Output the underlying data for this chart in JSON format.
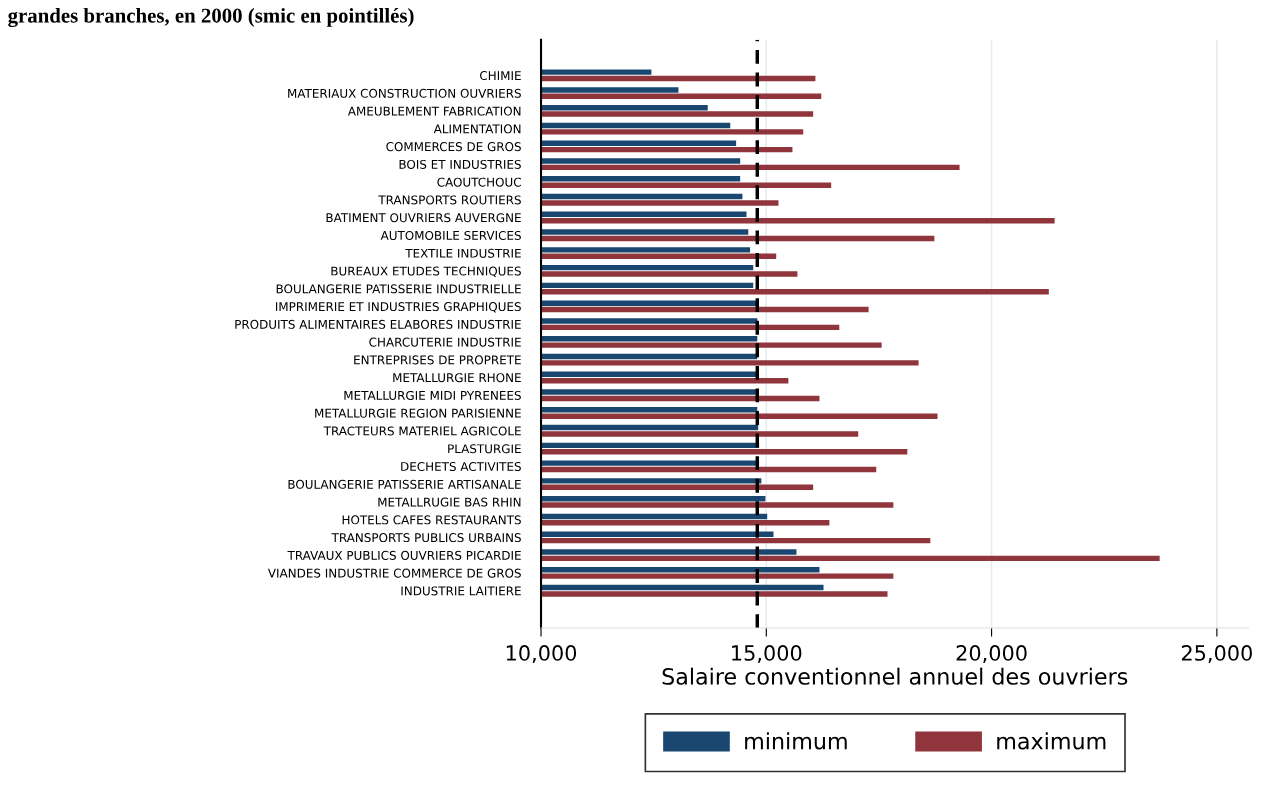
{
  "chart_data": {
    "type": "bar",
    "orientation": "horizontal",
    "title": "grandes branches, en 2000 (smic en pointillés)",
    "xlabel": "Salaire conventionnel annuel des ouvriers",
    "categories": [
      "CHIMIE",
      "MATERIAUX CONSTRUCTION OUVRIERS",
      "AMEUBLEMENT FABRICATION",
      "ALIMENTATION",
      "COMMERCES DE GROS",
      "BOIS ET INDUSTRIES",
      "CAOUTCHOUC",
      "TRANSPORTS ROUTIERS",
      "BATIMENT OUVRIERS AUVERGNE",
      "AUTOMOBILE SERVICES",
      "TEXTILE INDUSTRIE",
      "BUREAUX ETUDES TECHNIQUES",
      "BOULANGERIE PATISSERIE INDUSTRIELLE",
      "IMPRIMERIE ET INDUSTRIES GRAPHIQUES",
      "PRODUITS ALIMENTAIRES ELABORES INDUSTRIE",
      "CHARCUTERIE INDUSTRIE",
      "ENTREPRISES DE PROPRETE",
      "METALLURGIE RHONE",
      "METALLURGIE MIDI PYRENEES",
      "METALLURGIE REGION PARISIENNE",
      "TRACTEURS MATERIEL AGRICOLE",
      "PLASTURGIE",
      "DECHETS ACTIVITES",
      "BOULANGERIE PATISSERIE ARTISANALE",
      "METALLRUGIE BAS RHIN",
      "HOTELS CAFES RESTAURANTS",
      "TRANSPORTS PUBLICS URBAINS",
      "TRAVAUX PUBLICS OUVRIERS PICARDIE",
      "VIANDES INDUSTRIE COMMERCE DE GROS",
      "INDUSTRIE LAITIERE"
    ],
    "series": [
      {
        "name": "minimum",
        "color": "#1a476f",
        "values": [
          12450,
          13050,
          13700,
          14200,
          14330,
          14420,
          14420,
          14470,
          14560,
          14600,
          14640,
          14710,
          14710,
          14780,
          14800,
          14800,
          14800,
          14820,
          14800,
          14800,
          14820,
          14840,
          14840,
          14890,
          14980,
          15020,
          15160,
          15670,
          16180,
          16270
        ]
      },
      {
        "name": "maximum",
        "color": "#90353b",
        "values": [
          16090,
          16220,
          16040,
          15820,
          15580,
          19290,
          16440,
          15270,
          21400,
          18730,
          15220,
          15690,
          21270,
          17270,
          16620,
          17560,
          18380,
          15490,
          16180,
          18800,
          17040,
          18130,
          17440,
          16040,
          17820,
          16400,
          18640,
          23730,
          17820,
          17690
        ]
      }
    ],
    "xlim": [
      10000,
      25700
    ],
    "xticks": [
      {
        "value": 10000,
        "label": "10,000"
      },
      {
        "value": 15000,
        "label": "15,000"
      },
      {
        "value": 20000,
        "label": "20,000"
      },
      {
        "value": 25000,
        "label": "25,000"
      }
    ],
    "ref_lines": [
      {
        "axis": "x",
        "value": 14800,
        "color": "#000000",
        "line_style": "dashed"
      }
    ],
    "grid": "x",
    "legend": "bottom"
  }
}
